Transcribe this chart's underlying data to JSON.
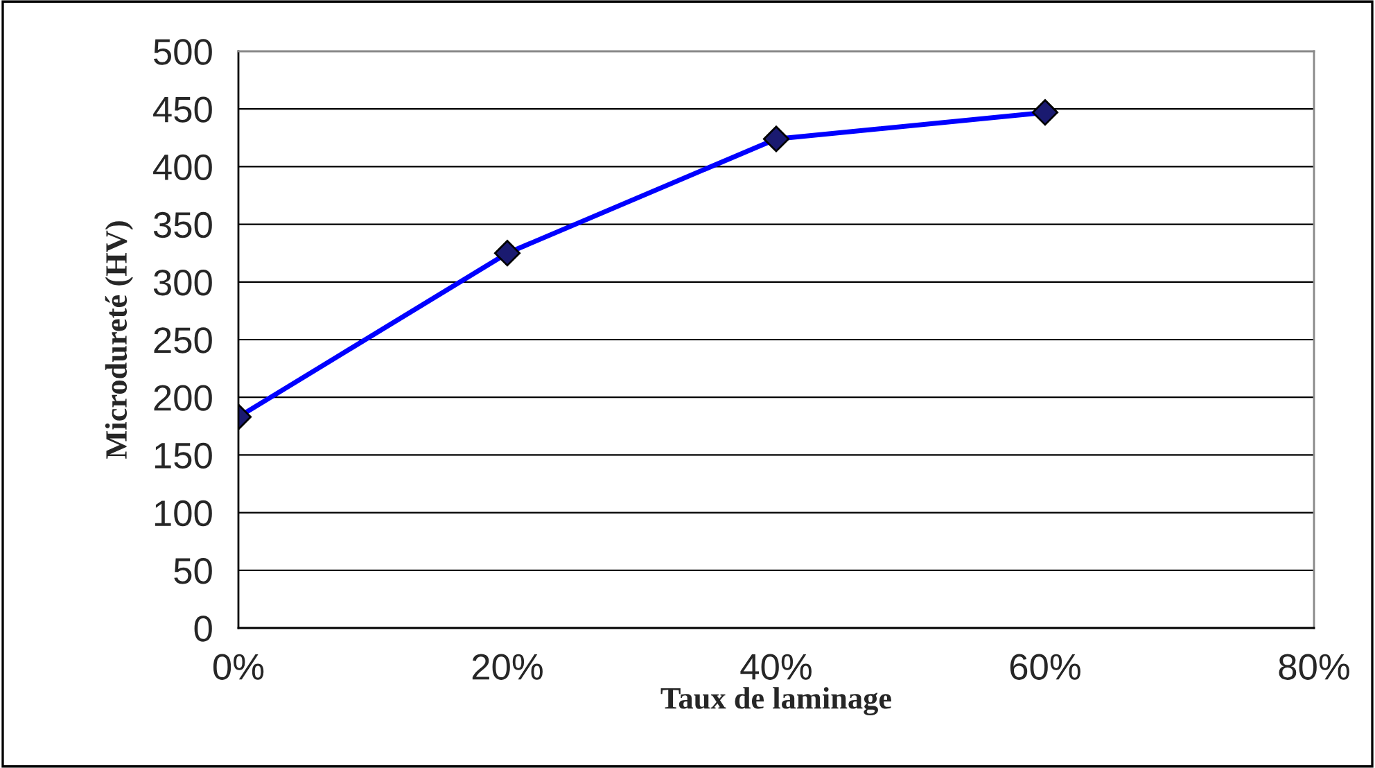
{
  "chart_data": {
    "type": "line",
    "xlabel": "Taux de laminage",
    "ylabel": "Microdureté (HV)",
    "x": [
      0,
      20,
      40,
      60
    ],
    "series": [
      {
        "color": "#0000ff",
        "values": [
          183,
          325,
          424,
          447
        ]
      }
    ],
    "marker": "diamond",
    "line_style": "solid",
    "grid": "y",
    "xlim": [
      0,
      80
    ],
    "xticks": [
      {
        "value": 0,
        "label": "0%"
      },
      {
        "value": 20,
        "label": "20%"
      },
      {
        "value": 40,
        "label": "40%"
      },
      {
        "value": 60,
        "label": "60%"
      },
      {
        "value": 80,
        "label": "80%"
      }
    ],
    "ylim": [
      0,
      500
    ],
    "yticks": [
      0,
      50,
      100,
      150,
      200,
      250,
      300,
      350,
      400,
      450,
      500
    ]
  }
}
